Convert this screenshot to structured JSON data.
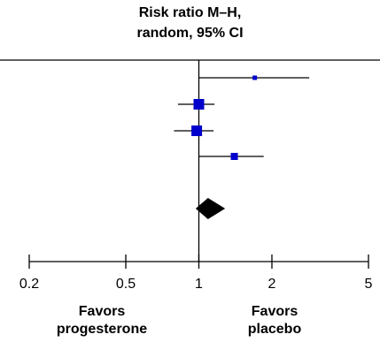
{
  "header": {
    "line1": "Risk ratio M–H,",
    "line2": "random, 95% CI"
  },
  "favors": {
    "left_line1": "Favors",
    "left_line2": "progesterone",
    "right_line1": "Favors",
    "right_line2": "placebo"
  },
  "chart_data": {
    "type": "forest",
    "title": "Risk ratio M–H, random, 95% CI",
    "x_scale": "log",
    "xlim": [
      0.2,
      5
    ],
    "xticks": [
      0.2,
      0.5,
      1,
      2,
      5
    ],
    "xtick_labels": [
      "0.2",
      "0.5",
      "1",
      "2",
      "5"
    ],
    "reference_line": 1,
    "marker_color": "#0000cc",
    "studies": [
      {
        "rr": 1.7,
        "lo": 1.0,
        "hi": 2.85,
        "weight": "small"
      },
      {
        "rr": 1.0,
        "lo": 0.82,
        "hi": 1.16,
        "weight": "large"
      },
      {
        "rr": 0.98,
        "lo": 0.79,
        "hi": 1.15,
        "weight": "large"
      },
      {
        "rr": 1.4,
        "lo": 1.0,
        "hi": 1.85,
        "weight": "medium"
      }
    ],
    "pooled": {
      "rr": 1.09,
      "lo": 0.97,
      "hi": 1.22
    },
    "pooled_color": "#000000"
  }
}
